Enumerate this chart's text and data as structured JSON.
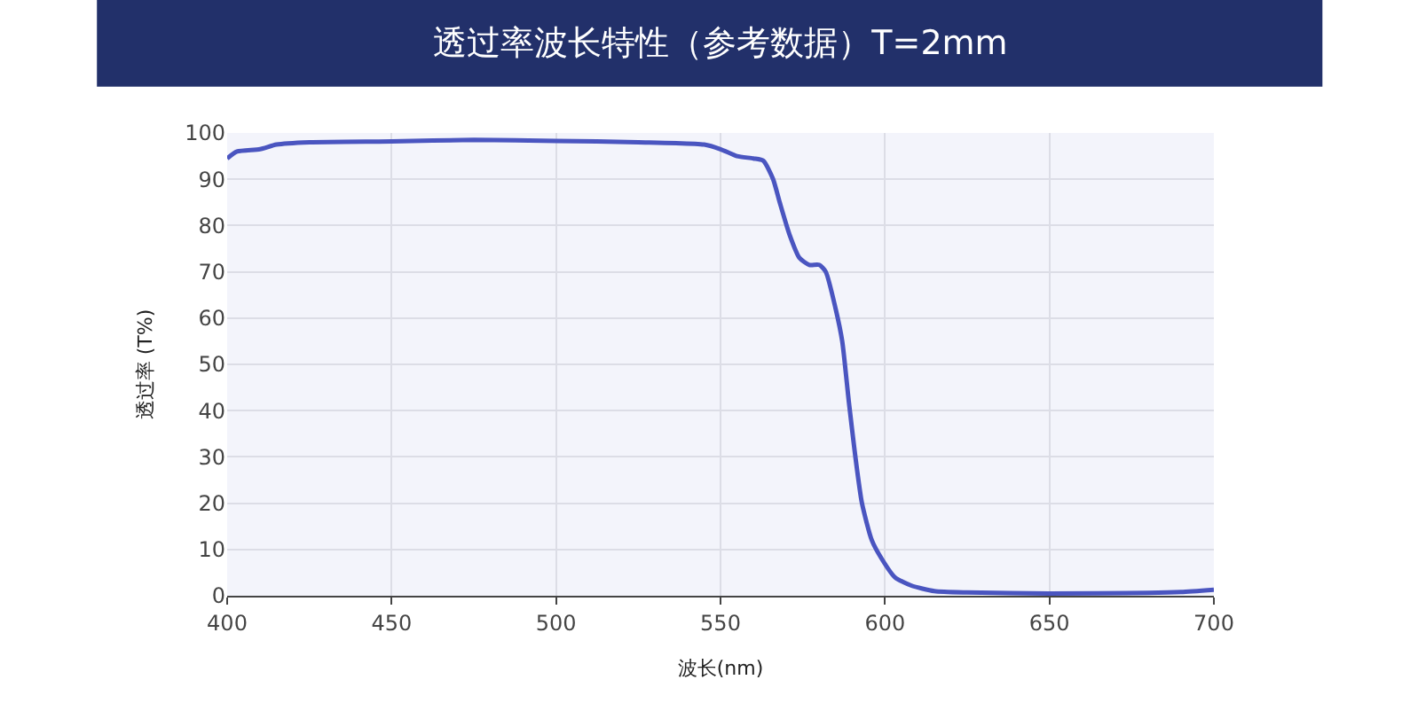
{
  "chart_data": {
    "type": "line",
    "title": "透过率波长特性（参考数据）T=2mm",
    "xlabel": "波长(nm)",
    "ylabel": "透过率 (T%)",
    "x": [
      400,
      403,
      410,
      415,
      425,
      450,
      475,
      500,
      525,
      545,
      550,
      555,
      560,
      563,
      566,
      568,
      571,
      574,
      577,
      580,
      582,
      585,
      587,
      589,
      591,
      593,
      596,
      599,
      603,
      608,
      615,
      625,
      650,
      680,
      690,
      700
    ],
    "series": [
      {
        "color": "#4a55c0",
        "values": [
          94.5,
          96,
          96.5,
          97.5,
          98,
          98.2,
          98.5,
          98.3,
          98,
          97.5,
          96.5,
          95,
          94.5,
          94,
          90,
          85,
          78,
          73,
          71.5,
          71.5,
          70,
          62,
          55,
          42,
          30,
          20,
          12,
          8,
          4,
          2.2,
          1,
          0.7,
          0.5,
          0.6,
          0.8,
          1.3
        ]
      }
    ],
    "xlim": [
      400,
      700
    ],
    "xticks": [
      400,
      450,
      500,
      550,
      600,
      650,
      700
    ],
    "ylim": [
      0,
      100
    ],
    "yticks": [
      0,
      10,
      20,
      30,
      40,
      50,
      60,
      70,
      80,
      90,
      100
    ],
    "grid": true,
    "legend": false,
    "marker": "none",
    "line_style": "solid"
  }
}
